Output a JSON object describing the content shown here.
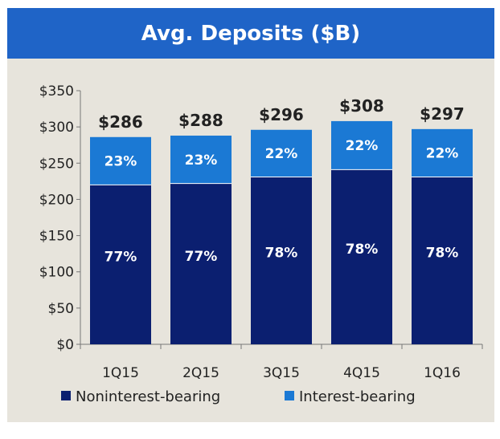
{
  "title": "Avg. Deposits ($B)",
  "colors": {
    "title_bar": "#1f64c7",
    "background": "#e7e4dc",
    "noninterest": "#0b1f70",
    "interest": "#1b79d4"
  },
  "chart_data": {
    "type": "bar",
    "stacked": true,
    "title": "Avg. Deposits ($B)",
    "xlabel": "",
    "ylabel": "",
    "categories": [
      "1Q15",
      "2Q15",
      "3Q15",
      "4Q15",
      "1Q16"
    ],
    "ylim": [
      0,
      350
    ],
    "y_ticks": [
      0,
      50,
      100,
      150,
      200,
      250,
      300,
      350
    ],
    "y_tick_labels": [
      "$0",
      "$50",
      "$100",
      "$150",
      "$200",
      "$250",
      "$300",
      "$350"
    ],
    "totals": [
      286,
      288,
      296,
      308,
      297
    ],
    "total_labels": [
      "$286",
      "$288",
      "$296",
      "$308",
      "$297"
    ],
    "series": [
      {
        "name": "Noninterest-bearing",
        "color": "#0b1f70",
        "values": [
          220,
          222,
          231,
          241,
          231
        ],
        "labels": [
          "77%",
          "77%",
          "78%",
          "78%",
          "78%"
        ]
      },
      {
        "name": "Interest-bearing",
        "color": "#1b79d4",
        "values": [
          66,
          66,
          65,
          67,
          66
        ],
        "labels": [
          "23%",
          "23%",
          "22%",
          "22%",
          "22%"
        ]
      }
    ],
    "grid": false,
    "legend_position": "bottom"
  }
}
